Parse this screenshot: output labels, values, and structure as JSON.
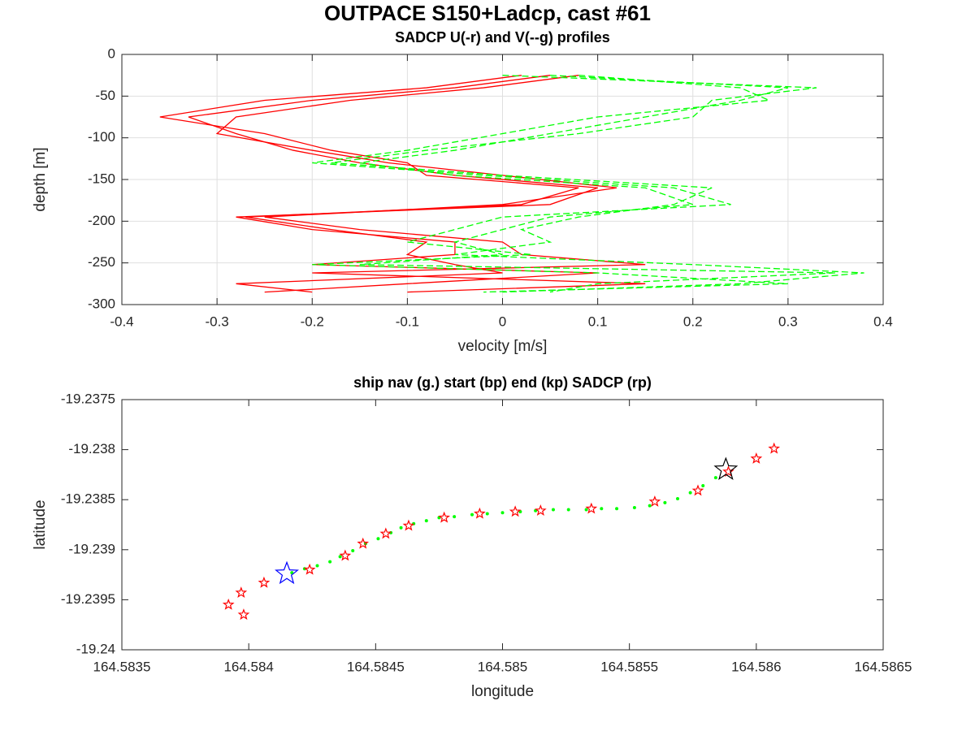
{
  "title": "OUTPACE S150+Ladcp, cast #61",
  "chart_data": [
    {
      "type": "line",
      "title": "SADCP U(-r) and V(--g) profiles",
      "xlabel": "velocity [m/s]",
      "ylabel": "depth [m]",
      "xlim": [
        -0.4,
        0.4
      ],
      "xticks": [
        -0.4,
        -0.3,
        -0.2,
        -0.1,
        0,
        0.1,
        0.2,
        0.3,
        0.4
      ],
      "ylim": [
        -300,
        0
      ],
      "yticks": [
        -300,
        -250,
        -200,
        -150,
        -100,
        -50,
        0
      ],
      "grid": true,
      "series": [
        {
          "color": "#ff0000",
          "dash": "solid",
          "x": [
            0.05,
            -0.05,
            -0.2,
            -0.33,
            -0.28,
            -0.22,
            -0.15,
            -0.05,
            0.1,
            0.05,
            -0.28,
            -0.2,
            -0.05,
            -0.05,
            -0.2,
            0.1,
            -0.1,
            -0.25
          ],
          "values": [
            -25,
            -40,
            -55,
            -75,
            -95,
            -115,
            -130,
            -145,
            -160,
            -180,
            -195,
            -210,
            -225,
            -240,
            -252,
            -262,
            -275,
            -285
          ]
        },
        {
          "color": "#ff0000",
          "dash": "solid",
          "x": [
            0.08,
            -0.02,
            -0.16,
            -0.28,
            -0.3,
            -0.2,
            -0.12,
            0,
            0.12,
            0,
            -0.25,
            -0.15,
            0,
            0.02,
            0.15,
            -0.2,
            0.15,
            -0.1
          ],
          "values": [
            -25,
            -40,
            -55,
            -75,
            -95,
            -115,
            -130,
            -145,
            -160,
            -180,
            -195,
            -210,
            -225,
            -240,
            -252,
            -262,
            -275,
            -285
          ]
        },
        {
          "color": "#ff0000",
          "dash": "solid",
          "x": [
            0.02,
            -0.08,
            -0.25,
            -0.36,
            -0.25,
            -0.18,
            -0.1,
            -0.08,
            0.08,
            0.02,
            -0.27,
            -0.18,
            -0.08,
            -0.1,
            -0.05,
            0,
            -0.28,
            -0.2
          ],
          "values": [
            -25,
            -40,
            -55,
            -75,
            -95,
            -115,
            -130,
            -145,
            -160,
            -180,
            -195,
            -210,
            -225,
            -240,
            -252,
            -262,
            -275,
            -285
          ]
        },
        {
          "color": "#00ff00",
          "dash": "dashed",
          "x": [
            0.05,
            0.3,
            0.25,
            0.15,
            0.05,
            -0.05,
            -0.15,
            -0.05,
            0.15,
            0.2,
            0.05,
            0,
            -0.05,
            0,
            -0.15,
            0.35,
            0.1,
            0.05
          ],
          "values": [
            -25,
            -40,
            -55,
            -75,
            -95,
            -115,
            -130,
            -145,
            -160,
            -180,
            -195,
            -210,
            -225,
            -240,
            -252,
            -262,
            -275,
            -285
          ]
        },
        {
          "color": "#00ff00",
          "dash": "dashed",
          "x": [
            0,
            0.33,
            0.22,
            0.2,
            0.08,
            -0.08,
            -0.18,
            0,
            0.22,
            0.18,
            0.08,
            0.02,
            0.05,
            -0.05,
            0.2,
            0.38,
            0.25,
            0
          ],
          "values": [
            -25,
            -40,
            -55,
            -75,
            -95,
            -115,
            -130,
            -145,
            -160,
            -180,
            -195,
            -210,
            -225,
            -240,
            -252,
            -262,
            -275,
            -285
          ]
        },
        {
          "color": "#00ff00",
          "dash": "dashed",
          "x": [
            0.08,
            0.25,
            0.28,
            0.1,
            0,
            -0.1,
            -0.2,
            -0.02,
            0.18,
            0.24,
            0,
            -0.05,
            -0.1,
            0.03,
            -0.2,
            0.1,
            0.3,
            -0.02
          ],
          "values": [
            -25,
            -40,
            -55,
            -75,
            -95,
            -115,
            -130,
            -145,
            -160,
            -180,
            -195,
            -210,
            -225,
            -240,
            -252,
            -262,
            -275,
            -285
          ]
        }
      ]
    },
    {
      "type": "scatter",
      "title": "ship nav (g.) start (bp) end (kp) SADCP (rp)",
      "xlabel": "longitude",
      "ylabel": "latitude",
      "xlim": [
        164.5835,
        164.5865
      ],
      "xticks": [
        164.5835,
        164.584,
        164.5845,
        164.585,
        164.5855,
        164.586,
        164.5865
      ],
      "ylim": [
        -19.24,
        -19.2375
      ],
      "yticks": [
        -19.24,
        -19.2395,
        -19.239,
        -19.2385,
        -19.238,
        -19.2375
      ],
      "grid": false,
      "series": [
        {
          "color": "#00ff00",
          "marker": "dot",
          "x": [
            164.58417,
            164.58422,
            164.58427,
            164.58432,
            164.58436,
            164.58441,
            164.58446,
            164.58451,
            164.58456,
            164.5846,
            164.58465,
            164.5847,
            164.58475,
            164.58481,
            164.58488,
            164.58494,
            164.585,
            164.58507,
            164.58513,
            164.5852,
            164.58526,
            164.58533,
            164.58539,
            164.58545,
            164.58552,
            164.58558,
            164.58564,
            164.58569,
            164.58574,
            164.58579,
            164.58584
          ],
          "values": [
            -19.23923,
            -19.23919,
            -19.23916,
            -19.23912,
            -19.23907,
            -19.23901,
            -19.23894,
            -19.23889,
            -19.23883,
            -19.23878,
            -19.23874,
            -19.23871,
            -19.23868,
            -19.23867,
            -19.23865,
            -19.23864,
            -19.23863,
            -19.23862,
            -19.23861,
            -19.2386,
            -19.2386,
            -19.2386,
            -19.23859,
            -19.23859,
            -19.23858,
            -19.23856,
            -19.23853,
            -19.23849,
            -19.23843,
            -19.23836,
            -19.23828
          ]
        },
        {
          "color": "#ff0000",
          "marker": "star",
          "size": 6,
          "x": [
            164.58392,
            164.58397,
            164.58398,
            164.58406,
            164.58424,
            164.58438,
            164.58445,
            164.58454,
            164.58463,
            164.58477,
            164.58491,
            164.58505,
            164.58515,
            164.58535,
            164.5856,
            164.58577,
            164.58589,
            164.586,
            164.58607
          ],
          "values": [
            -19.23955,
            -19.23943,
            -19.23965,
            -19.23933,
            -19.2392,
            -19.23906,
            -19.23894,
            -19.23884,
            -19.23876,
            -19.23868,
            -19.23864,
            -19.23862,
            -19.23861,
            -19.23859,
            -19.23852,
            -19.23841,
            -19.23822,
            -19.23809,
            -19.23799
          ]
        },
        {
          "color": "#0000ff",
          "marker": "star",
          "size": 14,
          "x": [
            164.58415
          ],
          "values": [
            -19.23924
          ]
        },
        {
          "color": "#000000",
          "marker": "star",
          "size": 14,
          "x": [
            164.58588
          ],
          "values": [
            -19.2382
          ]
        }
      ]
    }
  ]
}
